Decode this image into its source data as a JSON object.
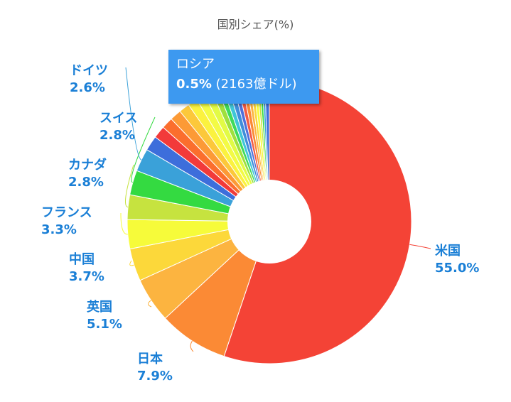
{
  "chart_data": {
    "type": "pie",
    "title": "国別シェア(%)",
    "categories": [
      "米国",
      "日本",
      "英国",
      "中国",
      "フランス",
      "カナダ",
      "スイス",
      "ドイツ",
      "ロシア"
    ],
    "values": [
      55.0,
      7.9,
      5.1,
      3.7,
      3.3,
      2.8,
      2.8,
      2.6,
      0.5
    ],
    "value_labels": [
      "55.0%",
      "7.9%",
      "5.1%",
      "3.7%",
      "3.3%",
      "2.8%",
      "2.8%",
      "2.6%",
      "0.5%"
    ],
    "other_slices": [
      1.7,
      1.4,
      1.3,
      1.3,
      1.2,
      1.1,
      1.0,
      0.9,
      0.7,
      0.6,
      0.6,
      0.6,
      0.5,
      0.5,
      0.5,
      0.4,
      0.4,
      0.4,
      0.3,
      0.3,
      0.3
    ],
    "donut": true,
    "colors": [
      "#f44336",
      "#fb8a35",
      "#fcb440",
      "#fcd83a",
      "#f6fb3a",
      "#c6e33f",
      "#34da41",
      "#3aa1d9",
      "#3d6edb",
      "#f23a3a",
      "#fb6e2d",
      "#fc9a36",
      "#fcc83a",
      "#fbf23f",
      "#f3fb45",
      "#e2fb45",
      "#9fe03d",
      "#3fda5b",
      "#3fc6d8",
      "#3f8edb",
      "#4f6fdb",
      "#f35b46",
      "#fb8a35",
      "#fcb440",
      "#fcd83a",
      "#f6fb3a",
      "#c6e33f",
      "#34da41",
      "#3aa1d9",
      "#3d6edb"
    ],
    "tooltip": {
      "name": "ロシア",
      "percent": "0.5%",
      "amount": " (2163億ドル)"
    }
  }
}
